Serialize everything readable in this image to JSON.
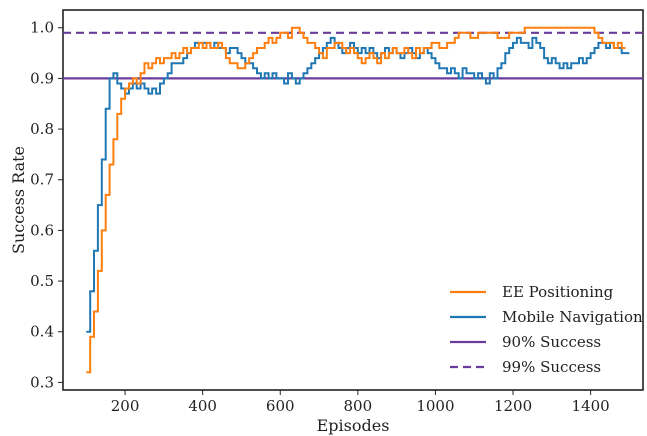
{
  "chart_data": {
    "type": "line",
    "title": "",
    "xlabel": "Episodes",
    "ylabel": "Success Rate",
    "xlim": [
      40,
      1535
    ],
    "ylim": [
      0.285,
      1.035
    ],
    "xticks": [
      200,
      400,
      600,
      800,
      1000,
      1200,
      1400
    ],
    "yticks": [
      0.3,
      0.4,
      0.5,
      0.6,
      0.7,
      0.8,
      0.9,
      1.0
    ],
    "grid": false,
    "legend_position": "bottom-right",
    "colors": {
      "ee_positioning": "#ff7f0e",
      "mobile_navigation": "#1f77b4",
      "success_line": "#6a3d9a"
    },
    "series": [
      {
        "name": "EE Positioning",
        "style": "solid",
        "x": [
          100,
          110,
          120,
          130,
          140,
          150,
          160,
          170,
          180,
          190,
          200,
          210,
          220,
          230,
          240,
          250,
          260,
          270,
          280,
          290,
          300,
          310,
          320,
          330,
          340,
          350,
          360,
          370,
          380,
          390,
          400,
          410,
          420,
          430,
          440,
          450,
          460,
          470,
          480,
          490,
          500,
          510,
          520,
          530,
          540,
          550,
          560,
          570,
          580,
          590,
          600,
          610,
          620,
          630,
          640,
          650,
          660,
          670,
          680,
          690,
          700,
          710,
          720,
          730,
          740,
          750,
          760,
          770,
          780,
          790,
          800,
          810,
          820,
          830,
          840,
          850,
          860,
          870,
          880,
          890,
          900,
          910,
          920,
          930,
          940,
          950,
          960,
          970,
          980,
          990,
          1000,
          1010,
          1020,
          1030,
          1040,
          1050,
          1060,
          1070,
          1080,
          1090,
          1100,
          1110,
          1120,
          1130,
          1140,
          1150,
          1160,
          1170,
          1180,
          1190,
          1200,
          1210,
          1220,
          1230,
          1240,
          1250,
          1260,
          1270,
          1280,
          1290,
          1300,
          1310,
          1320,
          1330,
          1340,
          1350,
          1360,
          1370,
          1380,
          1390,
          1400,
          1410,
          1420,
          1430,
          1440,
          1450,
          1460,
          1470,
          1480,
          1490
        ],
        "values": [
          0.32,
          0.39,
          0.44,
          0.52,
          0.6,
          0.67,
          0.73,
          0.78,
          0.83,
          0.86,
          0.88,
          0.89,
          0.9,
          0.89,
          0.91,
          0.93,
          0.92,
          0.93,
          0.94,
          0.93,
          0.94,
          0.94,
          0.95,
          0.94,
          0.95,
          0.96,
          0.95,
          0.96,
          0.96,
          0.97,
          0.96,
          0.97,
          0.96,
          0.96,
          0.97,
          0.96,
          0.94,
          0.93,
          0.93,
          0.92,
          0.92,
          0.93,
          0.94,
          0.95,
          0.96,
          0.96,
          0.97,
          0.98,
          0.97,
          0.98,
          0.99,
          0.99,
          0.98,
          1.0,
          1.0,
          0.99,
          0.98,
          0.97,
          0.97,
          0.96,
          0.95,
          0.94,
          0.96,
          0.96,
          0.97,
          0.97,
          0.96,
          0.95,
          0.96,
          0.95,
          0.94,
          0.93,
          0.94,
          0.95,
          0.94,
          0.93,
          0.95,
          0.94,
          0.95,
          0.96,
          0.95,
          0.95,
          0.96,
          0.95,
          0.94,
          0.96,
          0.95,
          0.96,
          0.96,
          0.97,
          0.97,
          0.96,
          0.96,
          0.97,
          0.97,
          0.98,
          0.99,
          0.99,
          0.99,
          0.98,
          0.98,
          0.99,
          0.99,
          0.99,
          0.99,
          0.99,
          0.98,
          0.98,
          0.98,
          0.99,
          0.99,
          0.99,
          0.99,
          1.0,
          1.0,
          1.0,
          1.0,
          1.0,
          1.0,
          1.0,
          1.0,
          1.0,
          1.0,
          1.0,
          1.0,
          1.0,
          1.0,
          1.0,
          1.0,
          1.0,
          1.0,
          0.99,
          0.98,
          0.97,
          0.97,
          0.97,
          0.96,
          0.97,
          0.96,
          0.96
        ]
      },
      {
        "name": "Mobile Navigation",
        "style": "solid",
        "x": [
          100,
          110,
          120,
          130,
          140,
          150,
          160,
          170,
          180,
          190,
          200,
          210,
          220,
          230,
          240,
          250,
          260,
          270,
          280,
          290,
          300,
          310,
          320,
          330,
          340,
          350,
          360,
          370,
          380,
          390,
          400,
          410,
          420,
          430,
          440,
          450,
          460,
          470,
          480,
          490,
          500,
          510,
          520,
          530,
          540,
          550,
          560,
          570,
          580,
          590,
          600,
          610,
          620,
          630,
          640,
          650,
          660,
          670,
          680,
          690,
          700,
          710,
          720,
          730,
          740,
          750,
          760,
          770,
          780,
          790,
          800,
          810,
          820,
          830,
          840,
          850,
          860,
          870,
          880,
          890,
          900,
          910,
          920,
          930,
          940,
          950,
          960,
          970,
          980,
          990,
          1000,
          1010,
          1020,
          1030,
          1040,
          1050,
          1060,
          1070,
          1080,
          1090,
          1100,
          1110,
          1120,
          1130,
          1140,
          1150,
          1160,
          1170,
          1180,
          1190,
          1200,
          1210,
          1220,
          1230,
          1240,
          1250,
          1260,
          1270,
          1280,
          1290,
          1300,
          1310,
          1320,
          1330,
          1340,
          1350,
          1360,
          1370,
          1380,
          1390,
          1400,
          1410,
          1420,
          1430,
          1440,
          1450,
          1460,
          1470,
          1480,
          1490,
          1500
        ],
        "values": [
          0.4,
          0.48,
          0.56,
          0.65,
          0.74,
          0.84,
          0.9,
          0.91,
          0.89,
          0.88,
          0.87,
          0.88,
          0.89,
          0.88,
          0.89,
          0.88,
          0.87,
          0.88,
          0.87,
          0.89,
          0.9,
          0.91,
          0.93,
          0.93,
          0.93,
          0.94,
          0.95,
          0.96,
          0.97,
          0.97,
          0.97,
          0.97,
          0.96,
          0.97,
          0.96,
          0.96,
          0.95,
          0.96,
          0.96,
          0.95,
          0.94,
          0.93,
          0.93,
          0.92,
          0.91,
          0.9,
          0.91,
          0.9,
          0.91,
          0.9,
          0.9,
          0.89,
          0.91,
          0.9,
          0.89,
          0.9,
          0.91,
          0.92,
          0.93,
          0.94,
          0.95,
          0.96,
          0.97,
          0.98,
          0.97,
          0.96,
          0.95,
          0.96,
          0.97,
          0.96,
          0.95,
          0.96,
          0.95,
          0.96,
          0.95,
          0.94,
          0.95,
          0.96,
          0.95,
          0.96,
          0.95,
          0.94,
          0.95,
          0.96,
          0.95,
          0.94,
          0.95,
          0.96,
          0.95,
          0.94,
          0.93,
          0.92,
          0.92,
          0.91,
          0.92,
          0.91,
          0.9,
          0.92,
          0.91,
          0.91,
          0.9,
          0.91,
          0.9,
          0.89,
          0.91,
          0.9,
          0.92,
          0.93,
          0.95,
          0.96,
          0.97,
          0.98,
          0.97,
          0.97,
          0.96,
          0.98,
          0.97,
          0.96,
          0.94,
          0.93,
          0.94,
          0.93,
          0.92,
          0.93,
          0.92,
          0.93,
          0.93,
          0.94,
          0.93,
          0.94,
          0.95,
          0.96,
          0.97,
          0.97,
          0.96,
          0.97,
          0.96,
          0.96,
          0.95,
          0.95,
          0.95
        ]
      },
      {
        "name": "90% Success",
        "style": "solid",
        "y": 0.9
      },
      {
        "name": "99% Success",
        "style": "dashed",
        "y": 0.99
      }
    ]
  }
}
